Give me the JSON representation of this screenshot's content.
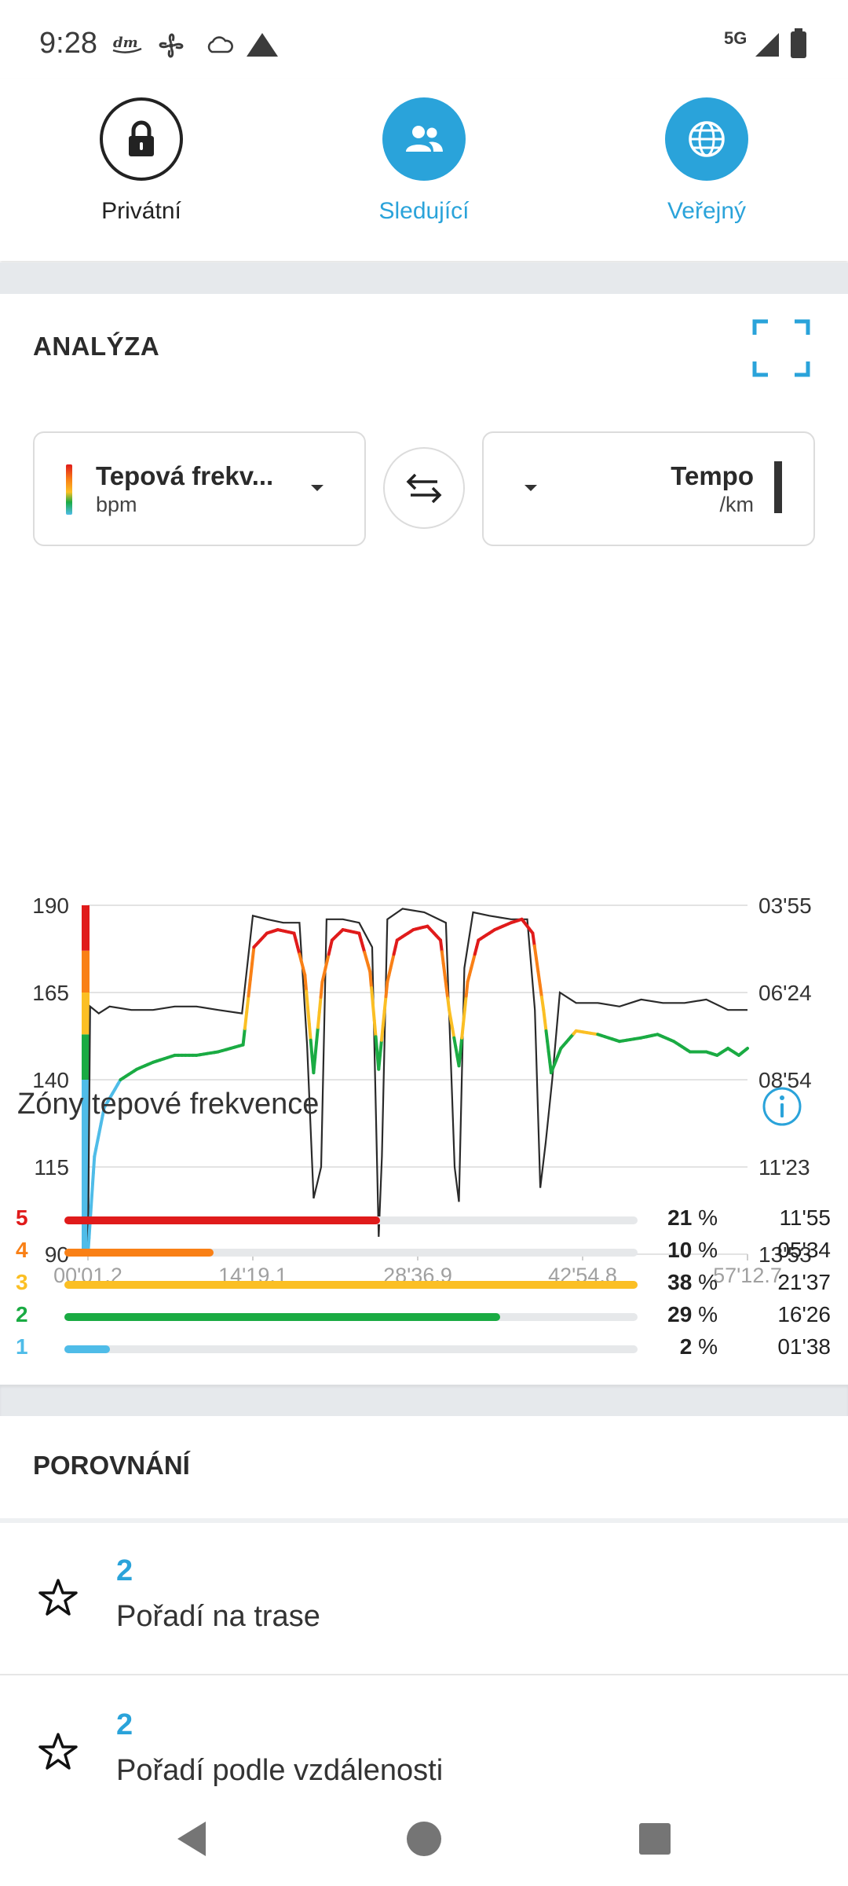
{
  "status_bar": {
    "time": "9:28",
    "network": "5G",
    "icons": [
      "notification-dm-icon",
      "fan-icon",
      "cloud-icon",
      "warning-triangle-icon",
      "signal-icon",
      "battery-icon"
    ]
  },
  "visibility": {
    "options": [
      {
        "label": "Privátní",
        "icon": "lock-icon",
        "selected": false
      },
      {
        "label": "Sledující",
        "icon": "people-icon",
        "selected": true
      },
      {
        "label": "Veřejný",
        "icon": "globe-icon",
        "selected": true
      }
    ],
    "accent": "#2aa3da"
  },
  "analysis": {
    "title": "ANALÝZA",
    "left_selector": {
      "label": "Tepová frekv...",
      "unit": "bpm"
    },
    "right_selector": {
      "label": "Tempo",
      "unit": "/km"
    }
  },
  "chart_data": {
    "type": "line",
    "x_ticks": [
      "00'01.2",
      "14'19.1",
      "28'36.9",
      "42'54.8",
      "57'12.7"
    ],
    "x_range": [
      "00'01.2",
      "57'12.7"
    ],
    "y_left": {
      "unit": "bpm",
      "ticks": [
        190,
        165,
        140,
        115,
        90
      ],
      "range": [
        90,
        190
      ]
    },
    "y_right": {
      "unit": "/km",
      "ticks": [
        "03'55",
        "06'24",
        "08'54",
        "11'23",
        "13'53"
      ],
      "scale": "inverted pace"
    },
    "grid": true,
    "series": [
      {
        "name": "Tepová frekv...",
        "unit": "bpm",
        "color_by_zone": true,
        "points": [
          [
            0,
            90
          ],
          [
            0.6,
            118
          ],
          [
            1.5,
            132
          ],
          [
            3,
            140
          ],
          [
            4.5,
            143
          ],
          [
            6,
            145
          ],
          [
            8,
            147
          ],
          [
            10,
            147
          ],
          [
            12,
            148
          ],
          [
            14.3,
            150
          ],
          [
            15.3,
            178
          ],
          [
            16.5,
            182
          ],
          [
            17.5,
            183
          ],
          [
            19,
            182
          ],
          [
            20,
            170
          ],
          [
            20.8,
            142
          ],
          [
            21.6,
            168
          ],
          [
            22.5,
            180
          ],
          [
            23.5,
            183
          ],
          [
            25,
            182
          ],
          [
            26,
            171
          ],
          [
            26.8,
            143
          ],
          [
            27.6,
            168
          ],
          [
            28.5,
            180
          ],
          [
            30,
            183
          ],
          [
            31.3,
            184
          ],
          [
            32.5,
            180
          ],
          [
            33.3,
            160
          ],
          [
            34.2,
            144
          ],
          [
            35,
            168
          ],
          [
            36,
            180
          ],
          [
            37.5,
            183
          ],
          [
            39,
            185
          ],
          [
            40,
            186
          ],
          [
            41,
            182
          ],
          [
            42,
            160
          ],
          [
            42.7,
            142
          ],
          [
            43.6,
            149
          ],
          [
            45,
            154
          ],
          [
            47,
            153
          ],
          [
            49,
            151
          ],
          [
            51,
            152
          ],
          [
            52.5,
            153
          ],
          [
            54,
            151
          ],
          [
            55.5,
            148
          ],
          [
            57,
            148
          ],
          [
            58,
            147
          ],
          [
            59,
            149
          ],
          [
            60,
            147
          ],
          [
            60.8,
            149
          ]
        ]
      },
      {
        "name": "Tempo",
        "unit": "min/km",
        "points": [
          [
            0,
            90
          ],
          [
            0.2,
            161
          ],
          [
            1,
            159
          ],
          [
            2,
            161
          ],
          [
            4,
            160
          ],
          [
            6,
            160
          ],
          [
            8,
            161
          ],
          [
            10,
            161
          ],
          [
            12,
            160
          ],
          [
            14.2,
            159
          ],
          [
            15.2,
            187
          ],
          [
            16.5,
            186
          ],
          [
            18,
            185
          ],
          [
            19.5,
            185
          ],
          [
            20.2,
            150
          ],
          [
            20.8,
            106
          ],
          [
            21.5,
            115
          ],
          [
            22,
            186
          ],
          [
            23.5,
            186
          ],
          [
            25,
            185
          ],
          [
            26.2,
            178
          ],
          [
            26.8,
            95
          ],
          [
            27.1,
            118
          ],
          [
            27.6,
            186
          ],
          [
            29,
            189
          ],
          [
            31,
            188
          ],
          [
            33,
            185
          ],
          [
            33.8,
            115
          ],
          [
            34.2,
            105
          ],
          [
            34.7,
            172
          ],
          [
            35.5,
            188
          ],
          [
            37,
            187
          ],
          [
            39,
            186
          ],
          [
            40.5,
            186
          ],
          [
            41.2,
            160
          ],
          [
            41.7,
            109
          ],
          [
            42.2,
            122
          ],
          [
            42.8,
            140
          ],
          [
            43.5,
            165
          ],
          [
            45,
            162
          ],
          [
            47,
            162
          ],
          [
            49,
            161
          ],
          [
            51,
            163
          ],
          [
            53,
            162
          ],
          [
            55,
            162
          ],
          [
            57,
            163
          ],
          [
            59,
            160
          ],
          [
            60.8,
            160
          ]
        ]
      }
    ]
  },
  "hr_zones": {
    "title": "Zóny tepové frekvence",
    "zones": [
      {
        "zone": "5",
        "percent": 21,
        "percent_label": "21",
        "time": "11'55",
        "color": "#e01b1b",
        "bar_fraction": 0.55
      },
      {
        "zone": "4",
        "percent": 10,
        "percent_label": "10",
        "time": "05'34",
        "color": "#f98016",
        "bar_fraction": 0.26
      },
      {
        "zone": "3",
        "percent": 38,
        "percent_label": "38",
        "time": "21'37",
        "color": "#fbbf24",
        "bar_fraction": 1.0
      },
      {
        "zone": "2",
        "percent": 29,
        "percent_label": "29",
        "time": "16'26",
        "color": "#1aab43",
        "bar_fraction": 0.76
      },
      {
        "zone": "1",
        "percent": 2,
        "percent_label": "2",
        "time": "01'38",
        "color": "#4fbce8",
        "bar_fraction": 0.08
      }
    ],
    "percent_suffix": "%"
  },
  "comparison": {
    "title": "POROVNÁNÍ",
    "items": [
      {
        "value": "2",
        "label": "Pořadí na trase"
      },
      {
        "value": "2",
        "label": "Pořadí podle vzdálenosti"
      }
    ]
  },
  "nav_bar": {
    "buttons": [
      "back-icon",
      "home-icon",
      "recents-icon"
    ]
  }
}
